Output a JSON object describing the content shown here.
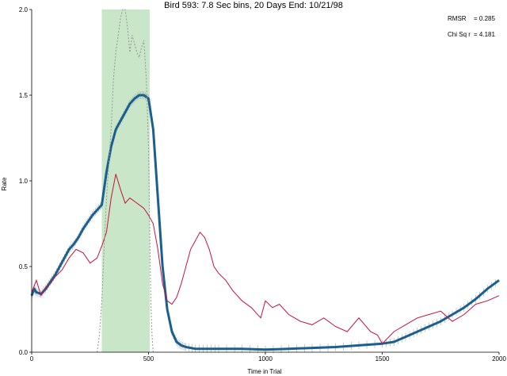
{
  "chart_data": {
    "type": "line",
    "title": "Bird 593: 7.8 Sec bins, 20 Days End: 10/21/98",
    "xlabel": "Time in Trial",
    "ylabel": "Rate",
    "xlim": [
      0,
      2000
    ],
    "ylim": [
      0,
      2.0
    ],
    "x_ticks": [
      "0",
      "500",
      "1000",
      "1500",
      "2000"
    ],
    "y_ticks": [
      "0.0",
      "0.5",
      "1.0",
      "1.5",
      "2.0"
    ],
    "grid": false,
    "shaded_region": {
      "x_start": 300,
      "x_end": 505,
      "color": "#c9e6c9"
    },
    "stats": [
      {
        "label": "RMSR",
        "value": "= 0.285"
      },
      {
        "label": "Chi Sq r",
        "value": "= 4.181"
      }
    ],
    "series": [
      {
        "role": "model-fit",
        "color": "#1a5f8f",
        "x": [
          0,
          10,
          20,
          40,
          60,
          80,
          100,
          120,
          140,
          160,
          180,
          200,
          220,
          240,
          260,
          280,
          300,
          320,
          340,
          360,
          380,
          400,
          420,
          440,
          460,
          480,
          500,
          520,
          540,
          560,
          580,
          600,
          620,
          640,
          660,
          700,
          750,
          800,
          900,
          1000,
          1100,
          1200,
          1300,
          1400,
          1500,
          1550,
          1600,
          1650,
          1700,
          1750,
          1800,
          1850,
          1900,
          1950,
          2000
        ],
        "y": [
          0.33,
          0.37,
          0.35,
          0.34,
          0.37,
          0.41,
          0.45,
          0.5,
          0.55,
          0.6,
          0.63,
          0.67,
          0.72,
          0.76,
          0.8,
          0.83,
          0.86,
          1.05,
          1.2,
          1.3,
          1.35,
          1.4,
          1.45,
          1.48,
          1.5,
          1.5,
          1.48,
          1.3,
          0.9,
          0.5,
          0.25,
          0.12,
          0.06,
          0.04,
          0.03,
          0.02,
          0.02,
          0.02,
          0.02,
          0.015,
          0.02,
          0.025,
          0.03,
          0.04,
          0.05,
          0.06,
          0.09,
          0.12,
          0.15,
          0.18,
          0.22,
          0.26,
          0.31,
          0.37,
          0.42
        ]
      },
      {
        "role": "observed",
        "color": "#c8103e",
        "x": [
          0,
          20,
          40,
          60,
          80,
          100,
          130,
          160,
          190,
          220,
          250,
          280,
          300,
          320,
          340,
          360,
          380,
          400,
          420,
          440,
          460,
          480,
          500,
          520,
          540,
          560,
          580,
          600,
          620,
          640,
          660,
          680,
          700,
          720,
          740,
          760,
          780,
          800,
          830,
          860,
          900,
          940,
          980,
          1000,
          1030,
          1060,
          1100,
          1150,
          1200,
          1250,
          1300,
          1350,
          1400,
          1450,
          1480,
          1500,
          1550,
          1600,
          1650,
          1700,
          1750,
          1800,
          1850,
          1900,
          1950,
          2000
        ],
        "y": [
          0.35,
          0.42,
          0.33,
          0.38,
          0.4,
          0.44,
          0.48,
          0.55,
          0.6,
          0.58,
          0.52,
          0.55,
          0.62,
          0.7,
          0.9,
          1.04,
          0.95,
          0.87,
          0.9,
          0.88,
          0.86,
          0.84,
          0.8,
          0.75,
          0.6,
          0.4,
          0.3,
          0.28,
          0.32,
          0.4,
          0.5,
          0.6,
          0.65,
          0.7,
          0.67,
          0.6,
          0.5,
          0.46,
          0.42,
          0.36,
          0.3,
          0.26,
          0.2,
          0.3,
          0.26,
          0.28,
          0.22,
          0.18,
          0.16,
          0.2,
          0.15,
          0.12,
          0.2,
          0.12,
          0.1,
          0.05,
          0.12,
          0.16,
          0.2,
          0.22,
          0.24,
          0.18,
          0.22,
          0.28,
          0.3,
          0.33
        ]
      },
      {
        "role": "dotted-trace",
        "color": "#8c9a8c",
        "x": [
          280,
          290,
          300,
          310,
          320,
          330,
          340,
          350,
          360,
          370,
          380,
          390,
          400,
          410,
          420,
          430,
          440,
          450,
          460,
          470,
          480,
          490,
          500,
          505,
          510,
          515,
          520
        ],
        "y": [
          0.0,
          0.1,
          0.3,
          0.6,
          0.9,
          1.1,
          1.3,
          1.6,
          1.75,
          1.85,
          1.95,
          2.0,
          2.0,
          1.9,
          1.75,
          1.85,
          1.8,
          1.75,
          1.72,
          1.78,
          1.82,
          1.6,
          1.2,
          0.7,
          0.3,
          0.1,
          0.0
        ]
      }
    ]
  }
}
